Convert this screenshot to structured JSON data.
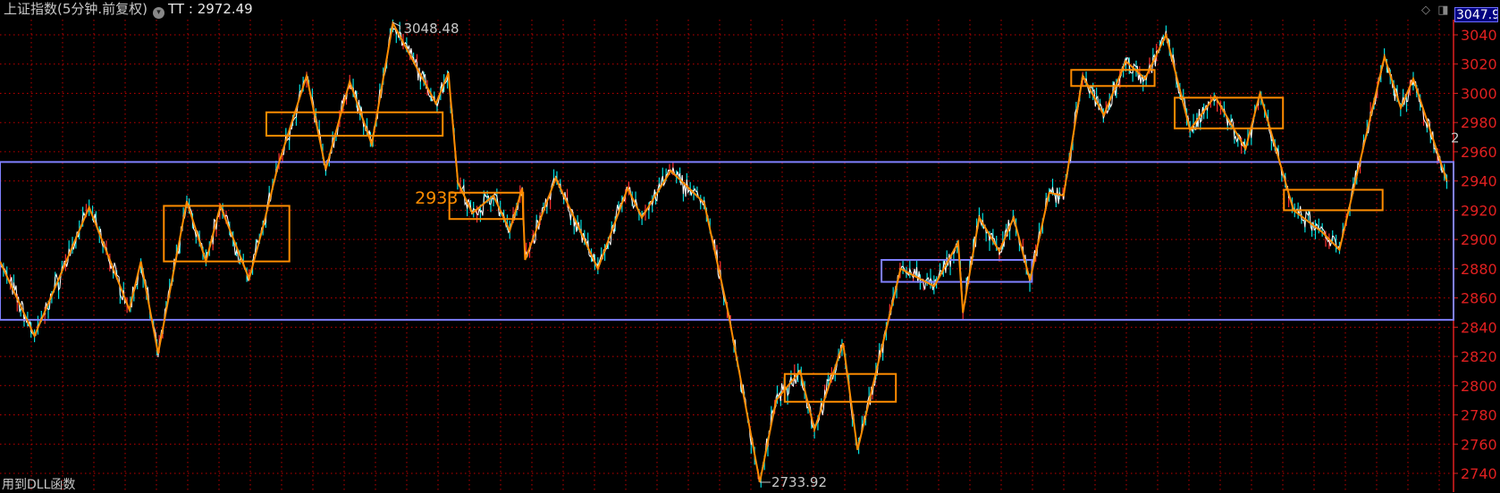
{
  "header": {
    "title": "上证指数(5分钟.前复权)",
    "indicator_name": "TT",
    "indicator_sep": " : ",
    "indicator_value": "2972.49",
    "menu_icon": "chevron-down-circle-icon"
  },
  "current_price_tag": "3047.9",
  "footer_note": "用到DLL函数",
  "toolbar_icons": [
    "diamond-icon",
    "panel-toggle-icon"
  ],
  "colors": {
    "background": "#000000",
    "grid": "#c00000",
    "axis": "#e02020",
    "price_line": "#ffffff",
    "price_tick": "#00e0e0",
    "zigzag": "#ff8c00",
    "box_orange": "#ff8c00",
    "box_blue": "#8080ff"
  },
  "chart_data": {
    "type": "line",
    "title": "",
    "ylim": [
      2740,
      3040
    ],
    "y_ticks": [
      3040,
      3020,
      3000,
      2980,
      2960,
      2940,
      2920,
      2900,
      2880,
      2860,
      2840,
      2820,
      2800,
      2780,
      2760,
      2740
    ],
    "x_range": [
      0,
      1517
    ],
    "grid": true,
    "zigzag": [
      [
        0,
        2885
      ],
      [
        36,
        2834
      ],
      [
        93,
        2922
      ],
      [
        135,
        2852
      ],
      [
        147,
        2885
      ],
      [
        165,
        2822
      ],
      [
        195,
        2926
      ],
      [
        215,
        2885
      ],
      [
        230,
        2923
      ],
      [
        260,
        2873
      ],
      [
        275,
        2910
      ],
      [
        290,
        2950
      ],
      [
        320,
        3012
      ],
      [
        340,
        2948
      ],
      [
        365,
        3008
      ],
      [
        388,
        2965
      ],
      [
        410,
        3048
      ],
      [
        455,
        2993
      ],
      [
        468,
        3014
      ],
      [
        478,
        2939
      ],
      [
        493,
        2918
      ],
      [
        515,
        2930
      ],
      [
        532,
        2906
      ],
      [
        545,
        2935
      ],
      [
        548,
        2886
      ],
      [
        580,
        2942
      ],
      [
        624,
        2880
      ],
      [
        655,
        2935
      ],
      [
        670,
        2915
      ],
      [
        700,
        2947
      ],
      [
        735,
        2925
      ],
      [
        760,
        2850
      ],
      [
        793,
        2734
      ],
      [
        810,
        2790
      ],
      [
        835,
        2810
      ],
      [
        850,
        2770
      ],
      [
        880,
        2829
      ],
      [
        895,
        2756
      ],
      [
        940,
        2880
      ],
      [
        975,
        2868
      ],
      [
        1000,
        2898
      ],
      [
        1005,
        2850
      ],
      [
        1022,
        2915
      ],
      [
        1043,
        2892
      ],
      [
        1058,
        2915
      ],
      [
        1075,
        2872
      ],
      [
        1095,
        2932
      ],
      [
        1110,
        2930
      ],
      [
        1130,
        3012
      ],
      [
        1152,
        2985
      ],
      [
        1175,
        3022
      ],
      [
        1195,
        3010
      ],
      [
        1217,
        3040
      ],
      [
        1242,
        2975
      ],
      [
        1268,
        2998
      ],
      [
        1300,
        2962
      ],
      [
        1315,
        3000
      ],
      [
        1350,
        2920
      ],
      [
        1380,
        2905
      ],
      [
        1398,
        2893
      ],
      [
        1445,
        3025
      ],
      [
        1462,
        2990
      ],
      [
        1475,
        3010
      ],
      [
        1510,
        2940
      ]
    ],
    "boxes_orange": [
      [
        171,
        302,
        2923,
        2885
      ],
      [
        278,
        462,
        2987,
        2971
      ],
      [
        469,
        546,
        2932,
        2914
      ],
      [
        819,
        935,
        2808,
        2789
      ],
      [
        1118,
        1205,
        3016,
        3005
      ],
      [
        1226,
        1339,
        2997,
        2976
      ],
      [
        1340,
        1443,
        2934,
        2920
      ]
    ],
    "boxes_blue": [
      [
        920,
        1077,
        2886,
        2871
      ],
      [
        0,
        1517,
        2953,
        2845
      ]
    ],
    "annotations": [
      {
        "text": "3048.48",
        "x": 410,
        "y": 3048.48,
        "kind": "high"
      },
      {
        "text": "2733.92",
        "x": 793,
        "y": 2733.92,
        "kind": "low"
      },
      {
        "text": "2933",
        "x": 433,
        "y": 2933,
        "kind": "level"
      },
      {
        "text": "2",
        "x": 1512,
        "y": 2970,
        "kind": "tag"
      }
    ]
  }
}
